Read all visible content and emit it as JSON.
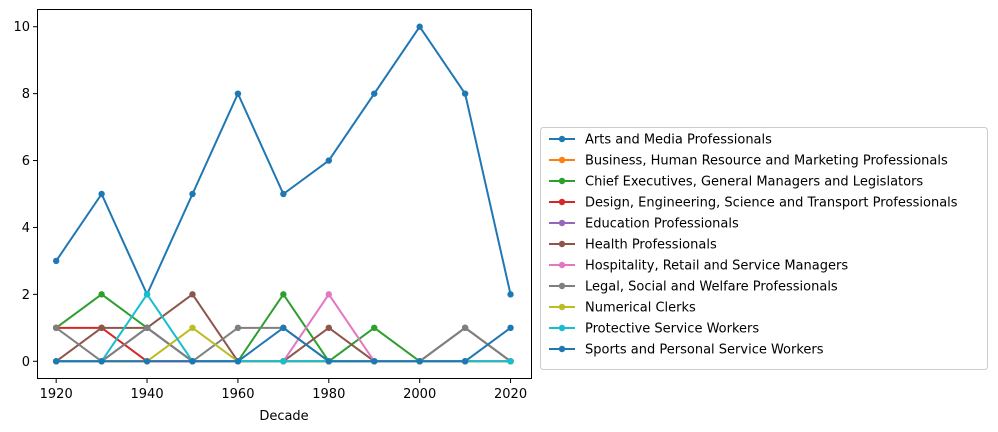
{
  "chart_data": {
    "type": "line",
    "xlabel": "Decade",
    "ylabel": "",
    "x": [
      1920,
      1930,
      1940,
      1950,
      1960,
      1970,
      1980,
      1990,
      2000,
      2010,
      2020
    ],
    "xlim": [
      1916,
      2024.5
    ],
    "ylim": [
      -0.5,
      10.5
    ],
    "xticks": [
      1920,
      1940,
      1960,
      1980,
      2000,
      2020
    ],
    "yticks": [
      0,
      2,
      4,
      6,
      8,
      10
    ],
    "grid": false,
    "legend_position": "right",
    "series": [
      {
        "name": "Arts and Media Professionals",
        "color": "#1f77b4",
        "values": [
          3,
          5,
          2,
          5,
          8,
          5,
          6,
          8,
          10,
          8,
          2
        ]
      },
      {
        "name": "Business, Human Resource and Marketing Professionals",
        "color": "#ff7f0e",
        "values": [
          0,
          0,
          0,
          0,
          0,
          0,
          0,
          0,
          0,
          0,
          0
        ]
      },
      {
        "name": "Chief Executives, General Managers and Legislators",
        "color": "#2ca02c",
        "values": [
          1,
          2,
          1,
          0,
          0,
          2,
          0,
          1,
          0,
          0,
          0
        ]
      },
      {
        "name": "Design, Engineering, Science and Transport Professionals",
        "color": "#d62728",
        "values": [
          1,
          1,
          0,
          0,
          0,
          0,
          0,
          0,
          0,
          0,
          0
        ]
      },
      {
        "name": "Education Professionals",
        "color": "#9467bd",
        "values": [
          0,
          0,
          1,
          0,
          0,
          0,
          0,
          0,
          0,
          0,
          0
        ]
      },
      {
        "name": "Health Professionals",
        "color": "#8c564b",
        "values": [
          0,
          1,
          1,
          2,
          0,
          0,
          1,
          0,
          0,
          1,
          0
        ]
      },
      {
        "name": "Hospitality, Retail and Service Managers",
        "color": "#e377c2",
        "values": [
          0,
          0,
          0,
          0,
          0,
          0,
          2,
          0,
          0,
          0,
          0
        ]
      },
      {
        "name": "Legal, Social and Welfare Professionals",
        "color": "#7f7f7f",
        "values": [
          1,
          0,
          1,
          0,
          1,
          1,
          0,
          0,
          0,
          1,
          0
        ]
      },
      {
        "name": "Numerical Clerks",
        "color": "#bcbd22",
        "values": [
          0,
          0,
          0,
          1,
          0,
          0,
          0,
          0,
          0,
          0,
          0
        ]
      },
      {
        "name": "Protective Service Workers",
        "color": "#17becf",
        "values": [
          0,
          0,
          2,
          0,
          0,
          0,
          0,
          0,
          0,
          0,
          0
        ]
      },
      {
        "name": "Sports and Personal Service Workers",
        "color": "#1f77b4",
        "values": [
          0,
          0,
          0,
          0,
          0,
          1,
          0,
          0,
          0,
          0,
          1
        ]
      }
    ]
  }
}
